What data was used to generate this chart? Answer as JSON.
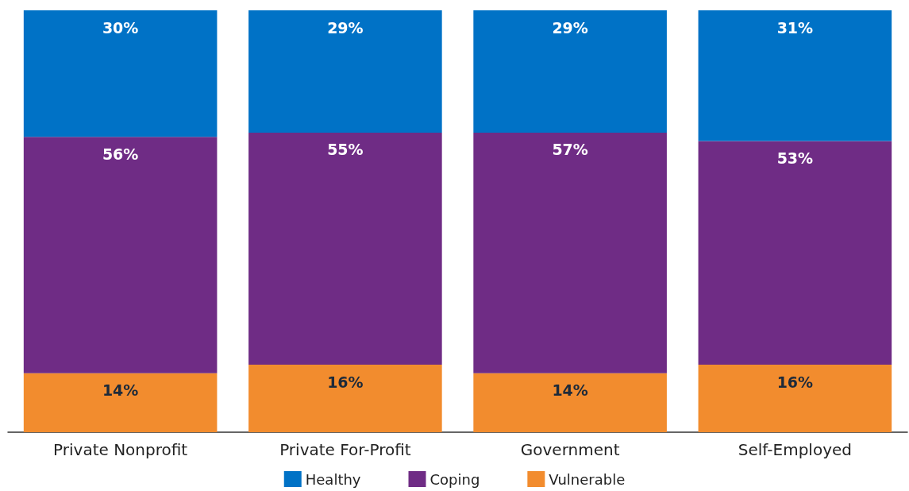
{
  "chart_data": {
    "type": "bar",
    "stacked": true,
    "legend": "bottom",
    "categories": [
      "Private Nonprofit",
      "Private For-Profit",
      "Government",
      "Self-Employed"
    ],
    "series": [
      {
        "name": "Vulnerable",
        "color": "#f28c2e",
        "values": [
          14,
          16,
          14,
          16
        ],
        "value_labels": [
          "14%",
          "16%",
          "14%",
          "16%"
        ]
      },
      {
        "name": "Coping",
        "color": "#6f2c85",
        "values": [
          56,
          55,
          57,
          53
        ],
        "value_labels": [
          "56%",
          "55%",
          "57%",
          "53%"
        ]
      },
      {
        "name": "Healthy",
        "color": "#0072c6",
        "values": [
          30,
          29,
          29,
          31
        ],
        "value_labels": [
          "30%",
          "29%",
          "29%",
          "31%"
        ]
      }
    ]
  }
}
